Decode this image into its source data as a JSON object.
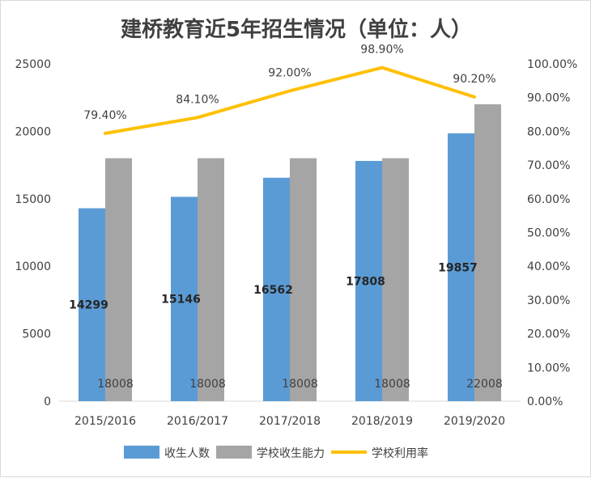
{
  "chart_data": {
    "type": "bar",
    "title": "建桥教育近5年招生情况（单位：人）",
    "categories": [
      "2015/2016",
      "2016/2017",
      "2017/2018",
      "2018/2019",
      "2019/2020"
    ],
    "series": [
      {
        "name": "收生人数",
        "kind": "bar",
        "axis": "left",
        "color": "#5b9bd5",
        "values": [
          14299,
          15146,
          16562,
          17808,
          19857
        ]
      },
      {
        "name": "学校收生能力",
        "kind": "bar",
        "axis": "left",
        "color": "#a5a5a5",
        "values": [
          18008,
          18008,
          18008,
          18008,
          22008
        ]
      },
      {
        "name": "学校利用率",
        "kind": "line",
        "axis": "right",
        "color": "#ffc000",
        "values": [
          79.4,
          84.1,
          92.0,
          98.9,
          90.2
        ],
        "labels": [
          "79.40%",
          "84.10%",
          "92.00%",
          "98.90%",
          "90.20%"
        ]
      }
    ],
    "y_left": {
      "min": 0,
      "max": 25000,
      "ticks": [
        "0",
        "5000",
        "10000",
        "15000",
        "20000",
        "25000"
      ]
    },
    "y_right": {
      "min": 0,
      "max": 100,
      "ticks": [
        "0.00%",
        "10.00%",
        "20.00%",
        "30.00%",
        "40.00%",
        "50.00%",
        "60.00%",
        "70.00%",
        "80.00%",
        "90.00%",
        "100.00%"
      ]
    },
    "legend": {
      "position": "bottom"
    },
    "grid": false
  }
}
